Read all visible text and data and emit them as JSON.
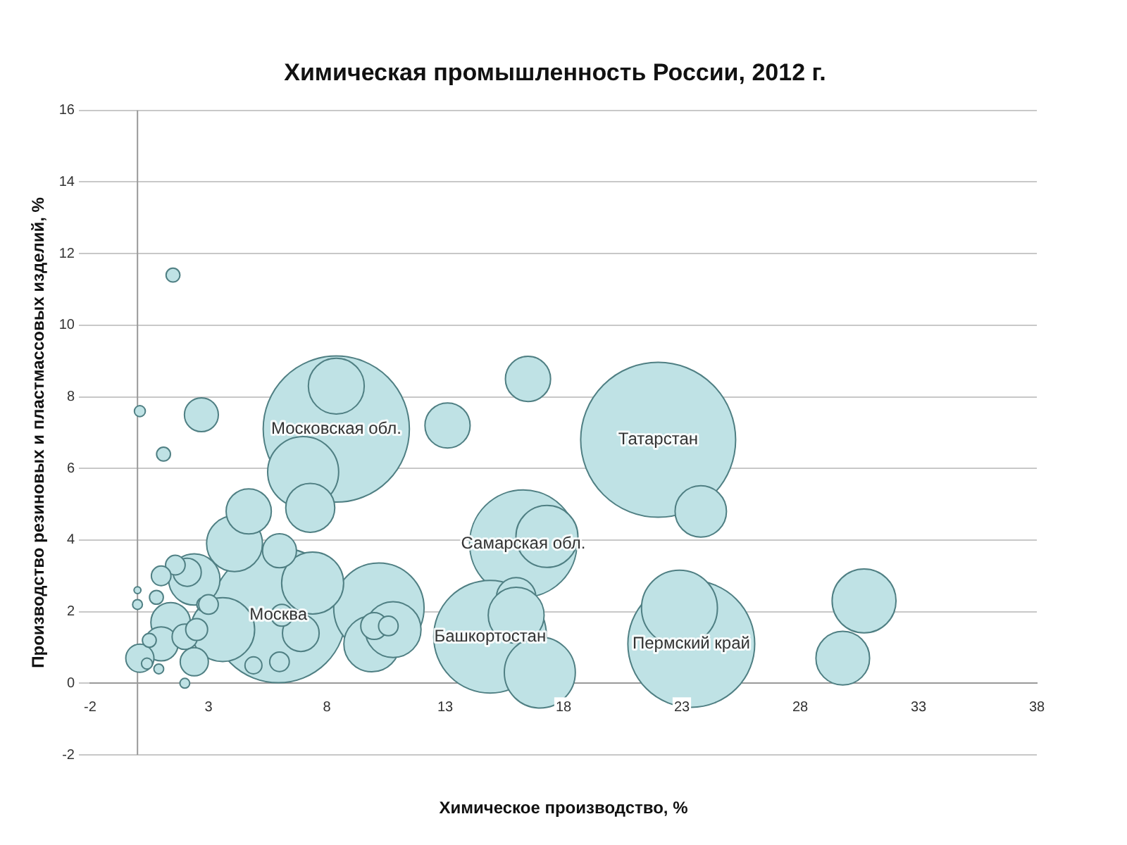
{
  "chart_data": {
    "type": "bubble",
    "title": "Химическая промышленность России, 2012 г.",
    "xlabel": "Химическое производство, %",
    "ylabel": "Производство резиновых и пластмассовых изделий, %",
    "xlim": [
      -2,
      38
    ],
    "xticks": [
      -2,
      3,
      8,
      13,
      18,
      23,
      28,
      33,
      38
    ],
    "ylim": [
      -2,
      16
    ],
    "yticks": [
      -2,
      0,
      2,
      4,
      6,
      8,
      10,
      12,
      14,
      16
    ],
    "grid": "y",
    "legend": false,
    "series": [
      {
        "color": "#bfe2e5",
        "x": [
          22.0,
          8.4,
          5.95,
          23.4,
          16.3,
          14.9,
          8.4,
          7.0,
          7.3,
          13.1,
          16.5,
          17.3,
          23.8,
          22.9,
          30.7,
          29.8,
          17.0,
          16.0,
          16.0,
          10.2,
          9.9,
          10.8,
          10.0,
          10.6,
          7.4,
          6.9,
          6.1,
          6.0,
          4.9,
          6.0,
          4.1,
          4.7,
          2.7,
          1.5,
          0.1,
          1.1,
          2.4,
          2.1,
          1.6,
          1.0,
          3.6,
          1.4,
          1.0,
          0.1,
          2.0,
          2.4,
          2.8,
          0.5,
          0.8,
          0.0,
          2.0,
          3.0,
          2.5,
          0.4,
          0.9,
          0.0
        ],
        "values": [
          6.8,
          7.1,
          1.9,
          1.1,
          3.9,
          1.3,
          8.3,
          5.9,
          4.9,
          7.2,
          8.5,
          4.1,
          4.8,
          2.1,
          2.3,
          0.7,
          0.3,
          2.4,
          1.9,
          2.1,
          1.1,
          1.5,
          1.6,
          1.6,
          2.8,
          1.4,
          1.9,
          0.6,
          0.5,
          3.7,
          3.9,
          4.8,
          7.5,
          11.4,
          7.6,
          6.4,
          2.9,
          3.1,
          3.3,
          3.0,
          1.5,
          1.7,
          1.1,
          0.7,
          1.3,
          0.6,
          2.2,
          1.2,
          2.4,
          2.2,
          0.0,
          2.2,
          1.5,
          0.55,
          0.4,
          2.6
        ],
        "sizes": [
          1,
          0.89,
          0.76,
          0.67,
          0.48,
          0.53,
          0.13,
          0.21,
          0.1,
          0.085,
          0.085,
          0.16,
          0.11,
          0.24,
          0.17,
          0.12,
          0.21,
          0.065,
          0.13,
          0.34,
          0.13,
          0.13,
          0.03,
          0.016,
          0.16,
          0.056,
          0.02,
          0.016,
          0.012,
          0.048,
          0.13,
          0.085,
          0.048,
          0.008,
          0.005,
          0.008,
          0.11,
          0.033,
          0.016,
          0.016,
          0.17,
          0.065,
          0.048,
          0.033,
          0.027,
          0.033,
          0.008,
          0.008,
          0.008,
          0.004,
          0.004,
          0.016,
          0.02,
          0.005,
          0.004,
          0.002
        ]
      }
    ],
    "annotations": [
      {
        "text": "Татарстан",
        "x": 22.0,
        "y": 6.8
      },
      {
        "text": "Московская обл.",
        "x": 8.4,
        "y": 7.1
      },
      {
        "text": "Москва",
        "x": 5.95,
        "y": 1.9
      },
      {
        "text": "Самарская обл.",
        "x": 16.3,
        "y": 3.9
      },
      {
        "text": "Пермский край",
        "x": 23.4,
        "y": 1.1
      },
      {
        "text": "Башкортостан",
        "x": 14.9,
        "y": 1.3
      }
    ]
  }
}
